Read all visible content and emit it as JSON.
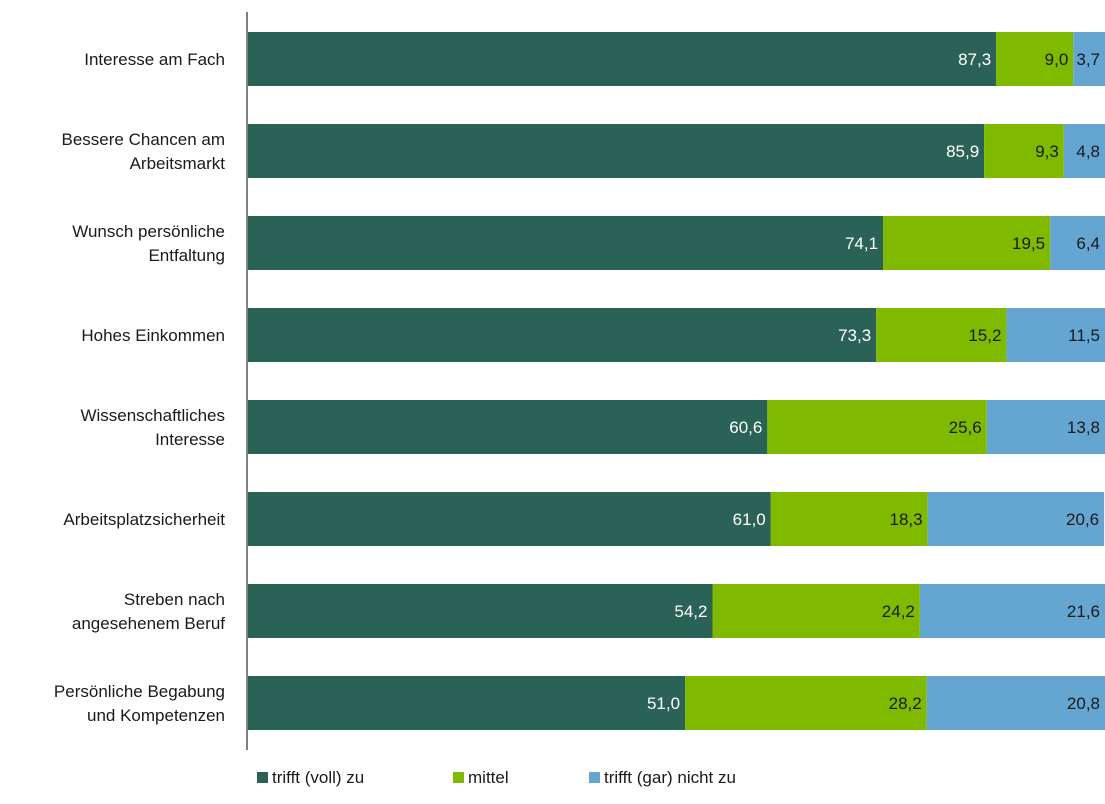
{
  "chart_data": {
    "type": "bar",
    "orientation": "horizontal",
    "stacked": true,
    "categories": [
      "Interesse am Fach",
      "Bessere Chancen am Arbeitsmarkt",
      "Wunsch persönliche Entfaltung",
      "Hohes Einkommen",
      "Wissenschaftliches Interesse",
      "Arbeitsplatzsicherheit",
      "Streben nach angesehenem Beruf",
      "Persönliche Begabung und Kompetenzen"
    ],
    "category_label_lines": [
      [
        "Interesse am Fach"
      ],
      [
        "Bessere Chancen am",
        "Arbeitsmarkt"
      ],
      [
        "Wunsch persönliche",
        "Entfaltung"
      ],
      [
        "Hohes Einkommen"
      ],
      [
        "Wissenschaftliches",
        "Interesse"
      ],
      [
        "Arbeitsplatzsicherheit"
      ],
      [
        "Streben nach",
        "angesehenem Beruf"
      ],
      [
        "Persönliche Begabung",
        "und Kompetenzen"
      ]
    ],
    "series": [
      {
        "name": "trifft (voll) zu",
        "color": "#2a6256",
        "label_color": "#ffffff",
        "values": [
          87.3,
          85.9,
          74.1,
          73.3,
          60.6,
          61.0,
          54.2,
          51.0
        ],
        "labels": [
          "87,3",
          "85,9",
          "74,1",
          "73,3",
          "60,6",
          "61,0",
          "54,2",
          "51,0"
        ]
      },
      {
        "name": "mittel",
        "color": "#7fba00",
        "label_color": "#1a1a1a",
        "values": [
          9.0,
          9.3,
          19.5,
          15.2,
          25.6,
          18.3,
          24.2,
          28.2
        ],
        "labels": [
          "9,0",
          "9,3",
          "19,5",
          "15,2",
          "25,6",
          "18,3",
          "24,2",
          "28,2"
        ]
      },
      {
        "name": "trifft (gar) nicht zu",
        "color": "#65a5d2",
        "label_color": "#1a1a1a",
        "values": [
          3.7,
          4.8,
          6.4,
          11.5,
          13.8,
          20.6,
          21.6,
          20.8
        ],
        "labels": [
          "3,7",
          "4,8",
          "6,4",
          "11,5",
          "13,8",
          "20,6",
          "21,6",
          "20,8"
        ]
      }
    ],
    "xlim": [
      0,
      100
    ],
    "grid": false,
    "legend_position": "bottom",
    "axis_color": "#808080",
    "category_label_color": "#1a1a1a"
  }
}
